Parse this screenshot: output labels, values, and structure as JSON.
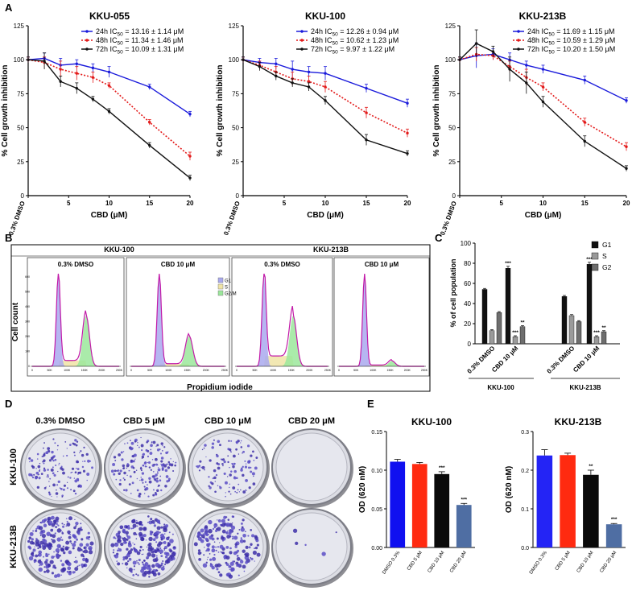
{
  "panels": {
    "A": "A",
    "B": "B",
    "C": "C",
    "D": "D",
    "E": "E"
  },
  "chart_data": [
    {
      "id": "A1",
      "type": "line",
      "title": "KKU-055",
      "xlabel": "CBD (μM)",
      "ylabel": "% Cell growth inhibition",
      "x_tick_labels": [
        "0.3% DMSO",
        "5",
        "10",
        "15",
        "20"
      ],
      "y_ticks": [
        0,
        25,
        50,
        75,
        100,
        125
      ],
      "ylim": [
        0,
        125
      ],
      "xlim": [
        0,
        20
      ],
      "series": [
        {
          "name": "24h",
          "ic50": "24h IC50 = 13.16 ± 1.14 μM",
          "color": "#1a1adb",
          "dash": "solid",
          "x": [
            0,
            2,
            4,
            6,
            8,
            10,
            15,
            20
          ],
          "values": [
            100,
            101,
            96,
            97,
            94,
            91,
            80,
            60
          ],
          "err": [
            2,
            4,
            5,
            3,
            3,
            4,
            2,
            2
          ]
        },
        {
          "name": "48h",
          "ic50": "48h IC50 = 11.34 ± 1.46 μM",
          "color": "#e31a1a",
          "dash": "dotted",
          "x": [
            0,
            2,
            4,
            6,
            8,
            10,
            15,
            20
          ],
          "values": [
            100,
            98,
            93,
            90,
            87,
            81,
            54,
            29
          ],
          "err": [
            2,
            4,
            6,
            5,
            4,
            2,
            2,
            3
          ]
        },
        {
          "name": "72h",
          "ic50": "72h IC50 = 10.09 ± 1.31 μM",
          "color": "#111111",
          "dash": "solid",
          "x": [
            0,
            2,
            4,
            6,
            8,
            10,
            15,
            20
          ],
          "values": [
            100,
            99,
            84,
            79,
            71,
            62,
            37,
            13
          ],
          "err": [
            2,
            6,
            4,
            4,
            2,
            2,
            2,
            2
          ]
        }
      ]
    },
    {
      "id": "A2",
      "type": "line",
      "title": "KKU-100",
      "xlabel": "CBD (μM)",
      "ylabel": "% Cell growth inhibition",
      "x_tick_labels": [
        "0.3% DMSO",
        "5",
        "10",
        "15",
        "20"
      ],
      "y_ticks": [
        0,
        25,
        50,
        75,
        100,
        125
      ],
      "ylim": [
        0,
        125
      ],
      "xlim": [
        0,
        20
      ],
      "series": [
        {
          "name": "24h",
          "ic50": "24h IC50 = 12.26 ± 0.94 μM",
          "color": "#1a1adb",
          "dash": "solid",
          "x": [
            0,
            2,
            4,
            6,
            8,
            10,
            15,
            20
          ],
          "values": [
            100,
            98,
            97,
            93,
            91,
            90,
            79,
            68
          ],
          "err": [
            2,
            3,
            4,
            6,
            4,
            5,
            3,
            3
          ]
        },
        {
          "name": "48h",
          "ic50": "48h IC50 = 10.62 ± 1.23 μM",
          "color": "#e31a1a",
          "dash": "dotted",
          "x": [
            0,
            2,
            4,
            6,
            8,
            10,
            15,
            20
          ],
          "values": [
            100,
            96,
            91,
            86,
            84,
            80,
            61,
            46
          ],
          "err": [
            2,
            3,
            4,
            5,
            4,
            4,
            4,
            3
          ]
        },
        {
          "name": "72h",
          "ic50": "72h IC50 = 9.97 ± 1.22 μM",
          "color": "#111111",
          "dash": "solid",
          "x": [
            0,
            2,
            4,
            6,
            8,
            10,
            15,
            20
          ],
          "values": [
            100,
            95,
            88,
            83,
            80,
            70,
            41,
            31
          ],
          "err": [
            2,
            3,
            3,
            3,
            3,
            3,
            4,
            2
          ]
        }
      ]
    },
    {
      "id": "A3",
      "type": "line",
      "title": "KKU-213B",
      "xlabel": "CBD (μM)",
      "ylabel": "% Cell growth inhibition",
      "x_tick_labels": [
        "0.3% DMSO",
        "5",
        "10",
        "15",
        "20"
      ],
      "y_ticks": [
        0,
        25,
        50,
        75,
        100,
        125
      ],
      "ylim": [
        0,
        125
      ],
      "xlim": [
        0,
        20
      ],
      "series": [
        {
          "name": "24h",
          "ic50": "24h IC50 = 11.69 ± 1.15 μM",
          "color": "#1a1adb",
          "dash": "solid",
          "x": [
            0,
            2,
            4,
            6,
            8,
            10,
            15,
            20
          ],
          "values": [
            100,
            103,
            104,
            100,
            96,
            93,
            85,
            70
          ],
          "err": [
            2,
            9,
            4,
            5,
            3,
            3,
            3,
            2
          ]
        },
        {
          "name": "48h",
          "ic50": "48h IC50 = 10.59 ± 1.29 μM",
          "color": "#e31a1a",
          "dash": "dotted",
          "x": [
            0,
            2,
            4,
            6,
            8,
            10,
            15,
            20
          ],
          "values": [
            100,
            104,
            103,
            95,
            87,
            80,
            54,
            36
          ],
          "err": [
            2,
            5,
            3,
            4,
            6,
            3,
            3,
            3
          ]
        },
        {
          "name": "72h",
          "ic50": "72h IC50 = 10.20 ± 1.50 μM",
          "color": "#111111",
          "dash": "solid",
          "x": [
            0,
            2,
            4,
            6,
            8,
            10,
            15,
            20
          ],
          "values": [
            100,
            112,
            106,
            93,
            83,
            69,
            40,
            20
          ],
          "err": [
            2,
            10,
            4,
            9,
            8,
            4,
            4,
            2
          ]
        }
      ]
    },
    {
      "id": "B",
      "type": "histogram-flow",
      "xlabel": "Propidium iodide",
      "ylabel": "Cell count",
      "groups": [
        {
          "name": "KKU-100"
        },
        {
          "name": "KKU-213B"
        }
      ],
      "subpanels": [
        "0.3% DMSO",
        "CBD 10 μM",
        "0.3% DMSO",
        "CBD 10 μM"
      ],
      "x_ticks": [
        "0",
        "50K",
        "100K",
        "150K",
        "200K",
        "250K"
      ],
      "y_ticks": [
        "0",
        "100",
        "200",
        "300",
        "400",
        "500",
        "600"
      ],
      "legend": [
        "G1",
        "S",
        "G2/M"
      ],
      "legend_colors": [
        "#a9a9ee",
        "#f0e4a6",
        "#9be79b"
      ]
    },
    {
      "id": "C",
      "type": "bar",
      "ylabel": "% of cell population",
      "y_ticks": [
        0,
        20,
        40,
        60,
        80,
        100
      ],
      "ylim": [
        0,
        100
      ],
      "categories": [
        "0.3% DMSO",
        "CBD 10 μM",
        "0.3% DMSO",
        "CBD 10 μM"
      ],
      "groups": [
        "KKU-100",
        "KKU-213B"
      ],
      "series": [
        {
          "name": "G1",
          "color": "#111111",
          "values": [
            54,
            75,
            47,
            79
          ],
          "err": [
            1,
            2,
            1,
            2
          ],
          "sig": [
            "",
            "***",
            "",
            "***"
          ]
        },
        {
          "name": "S",
          "color": "#9a9a9a",
          "values": [
            13,
            7,
            28,
            7
          ],
          "err": [
            1,
            1,
            1,
            1
          ],
          "sig": [
            "",
            "***",
            "",
            "***"
          ]
        },
        {
          "name": "G2",
          "color": "#6e6e6e",
          "values": [
            31,
            17,
            22,
            12
          ],
          "err": [
            1,
            1,
            1,
            1
          ],
          "sig": [
            "",
            "**",
            "",
            "**"
          ]
        }
      ]
    },
    {
      "id": "D",
      "type": "image-grid",
      "columns": [
        "0.3% DMSO",
        "CBD 5 μM",
        "CBD 10 μM",
        "CBD 20 μM"
      ],
      "rows": [
        "KKU-100",
        "KKU-213B"
      ],
      "colony_density": [
        [
          0.55,
          0.7,
          0.45,
          0.0
        ],
        [
          0.9,
          1.0,
          0.75,
          0.02
        ]
      ]
    },
    {
      "id": "E1",
      "type": "bar",
      "title": "KKU-100",
      "ylabel": "OD (620 nM)",
      "categories": [
        "DMSO 0.3%",
        "CBD 5 μM",
        "CBD 10 μM",
        "CBD 20 μM"
      ],
      "values": [
        0.111,
        0.108,
        0.095,
        0.055
      ],
      "err": [
        0.003,
        0.002,
        0.003,
        0.002
      ],
      "colors": [
        "#1010f0",
        "#ff2a10",
        "#0a0a0a",
        "#4f6ea3"
      ],
      "sig": [
        "",
        "",
        "***",
        "***"
      ],
      "y_ticks": [
        "0.00",
        "0.05",
        "0.10",
        "0.15"
      ],
      "ylim": [
        0,
        0.15
      ]
    },
    {
      "id": "E2",
      "type": "bar",
      "title": "KKU-213B",
      "ylabel": "OD (620 nM)",
      "categories": [
        "DMSO 0.3%",
        "CBD 5 μM",
        "CBD 10 μM",
        "CBD 20 μM"
      ],
      "values": [
        0.238,
        0.239,
        0.188,
        0.06
      ],
      "err": [
        0.015,
        0.005,
        0.012,
        0.002
      ],
      "colors": [
        "#2424f5",
        "#ff2a10",
        "#0a0a0a",
        "#4f6ea3"
      ],
      "sig": [
        "",
        "",
        "**",
        "***"
      ],
      "y_ticks": [
        "0.0",
        "0.1",
        "0.2",
        "0.3"
      ],
      "ylim": [
        0,
        0.3
      ]
    }
  ]
}
